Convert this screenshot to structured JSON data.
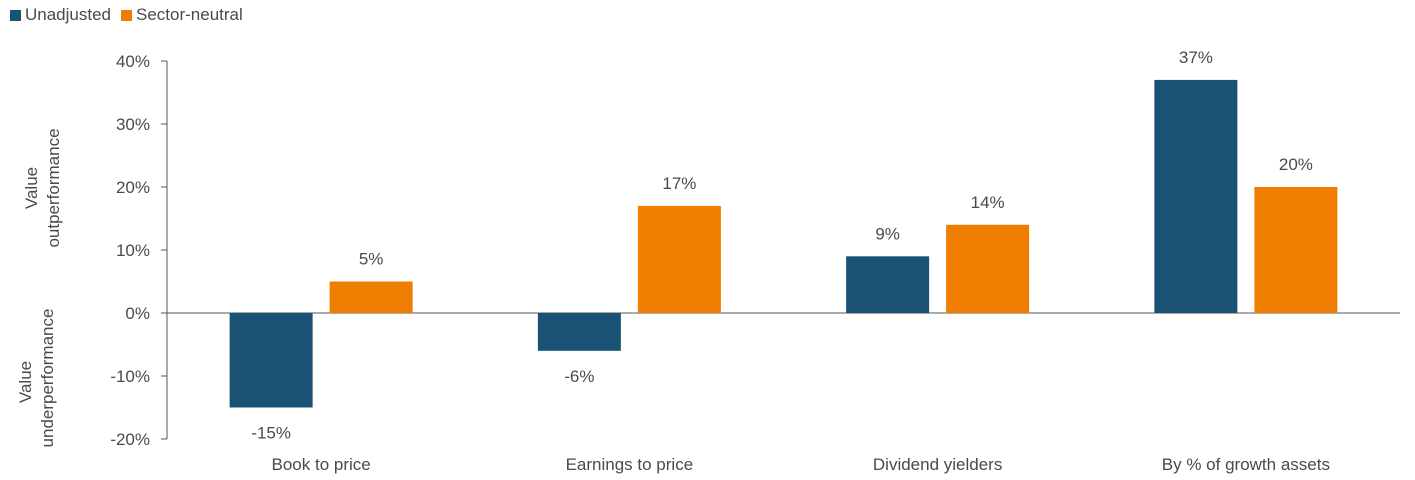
{
  "chart_data": {
    "type": "bar",
    "categories": [
      "Book to price",
      "Earnings to price",
      "Dividend yielders",
      "By % of growth assets"
    ],
    "series": [
      {
        "name": "Unadjusted",
        "values": [
          -15,
          -6,
          9,
          37
        ],
        "labels": [
          "-15%",
          "-6%",
          "9%",
          "37%"
        ],
        "color": "#1a5276"
      },
      {
        "name": "Sector-neutral",
        "values": [
          5,
          17,
          14,
          20
        ],
        "labels": [
          "5%",
          "17%",
          "14%",
          "20%"
        ],
        "color": "#ee7d00"
      }
    ],
    "ylim": [
      -20,
      40
    ],
    "yticks": [
      {
        "value": 40,
        "label": "40%"
      },
      {
        "value": 30,
        "label": "30%"
      },
      {
        "value": 20,
        "label": "20%"
      },
      {
        "value": 10,
        "label": "10%"
      },
      {
        "value": 0,
        "label": "0%"
      },
      {
        "value": -10,
        "label": "-10%"
      },
      {
        "value": -20,
        "label": "-20%"
      }
    ],
    "ylabel_positive": [
      "Value",
      "outperformance"
    ],
    "ylabel_negative": [
      "Value",
      "underperformance"
    ],
    "legend_position": "top-left",
    "grid": false
  }
}
